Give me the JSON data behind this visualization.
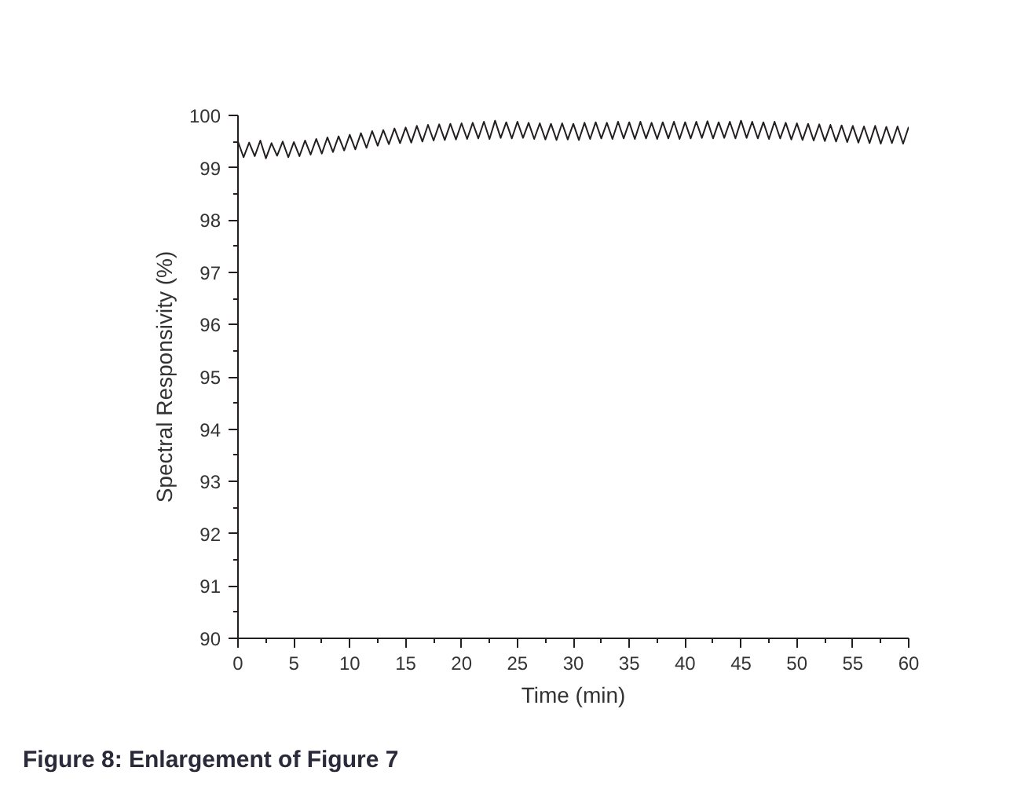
{
  "chart_data": {
    "type": "line",
    "xlabel": "Time (min)",
    "ylabel": "Spectral Responsivity (%)",
    "annotations": [
      "Figure 8: Enlargement of Figure 7"
    ],
    "x": [
      0,
      0.5,
      1,
      1.5,
      2,
      2.5,
      3,
      3.5,
      4,
      4.5,
      5,
      5.5,
      6,
      6.5,
      7,
      7.5,
      8,
      8.5,
      9,
      9.5,
      10,
      10.5,
      11,
      11.5,
      12,
      12.5,
      13,
      13.5,
      14,
      14.5,
      15,
      15.5,
      16,
      16.5,
      17,
      17.5,
      18,
      18.5,
      19,
      19.5,
      20,
      20.5,
      21,
      21.5,
      22,
      22.5,
      23,
      23.5,
      24,
      24.5,
      25,
      25.5,
      26,
      26.5,
      27,
      27.5,
      28,
      28.5,
      29,
      29.5,
      30,
      30.5,
      31,
      31.5,
      32,
      32.5,
      33,
      33.5,
      34,
      34.5,
      35,
      35.5,
      36,
      36.5,
      37,
      37.5,
      38,
      38.5,
      39,
      39.5,
      40,
      40.5,
      41,
      41.5,
      42,
      42.5,
      43,
      43.5,
      44,
      44.5,
      45,
      45.5,
      46,
      46.5,
      47,
      47.5,
      48,
      48.5,
      49,
      49.5,
      50,
      50.5,
      51,
      51.5,
      52,
      52.5,
      53,
      53.5,
      54,
      54.5,
      55,
      55.5,
      56,
      56.5,
      57,
      57.5,
      58,
      58.5,
      59,
      59.5,
      60
    ],
    "series": [
      {
        "color": "#231f20",
        "values": [
          99.5,
          99.2,
          99.48,
          99.22,
          99.52,
          99.18,
          99.47,
          99.23,
          99.5,
          99.2,
          99.49,
          99.22,
          99.52,
          99.25,
          99.55,
          99.27,
          99.58,
          99.3,
          99.6,
          99.33,
          99.63,
          99.35,
          99.66,
          99.38,
          99.7,
          99.42,
          99.72,
          99.45,
          99.75,
          99.47,
          99.77,
          99.48,
          99.8,
          99.5,
          99.82,
          99.52,
          99.83,
          99.53,
          99.84,
          99.54,
          99.85,
          99.55,
          99.86,
          99.56,
          99.88,
          99.55,
          99.9,
          99.57,
          99.87,
          99.56,
          99.88,
          99.57,
          99.86,
          99.55,
          99.85,
          99.54,
          99.84,
          99.53,
          99.85,
          99.54,
          99.84,
          99.53,
          99.86,
          99.55,
          99.87,
          99.56,
          99.86,
          99.55,
          99.88,
          99.56,
          99.87,
          99.55,
          99.88,
          99.56,
          99.86,
          99.55,
          99.87,
          99.56,
          99.88,
          99.55,
          99.87,
          99.56,
          99.88,
          99.57,
          99.89,
          99.56,
          99.87,
          99.57,
          99.88,
          99.56,
          99.9,
          99.57,
          99.88,
          99.56,
          99.87,
          99.55,
          99.88,
          99.56,
          99.86,
          99.54,
          99.85,
          99.53,
          99.84,
          99.52,
          99.83,
          99.51,
          99.82,
          99.5,
          99.81,
          99.49,
          99.8,
          99.48,
          99.79,
          99.47,
          99.8,
          99.46,
          99.78,
          99.47,
          99.79,
          99.46,
          99.78
        ]
      }
    ],
    "xlim": [
      0,
      60
    ],
    "xticks": [
      0,
      5,
      10,
      15,
      20,
      25,
      30,
      35,
      40,
      45,
      50,
      55,
      60
    ],
    "ylim": [
      90,
      100
    ],
    "yticks": [
      90,
      91,
      92,
      93,
      94,
      95,
      96,
      97,
      98,
      99,
      100
    ],
    "grid": false,
    "marker": "none",
    "line_style": "solid"
  }
}
